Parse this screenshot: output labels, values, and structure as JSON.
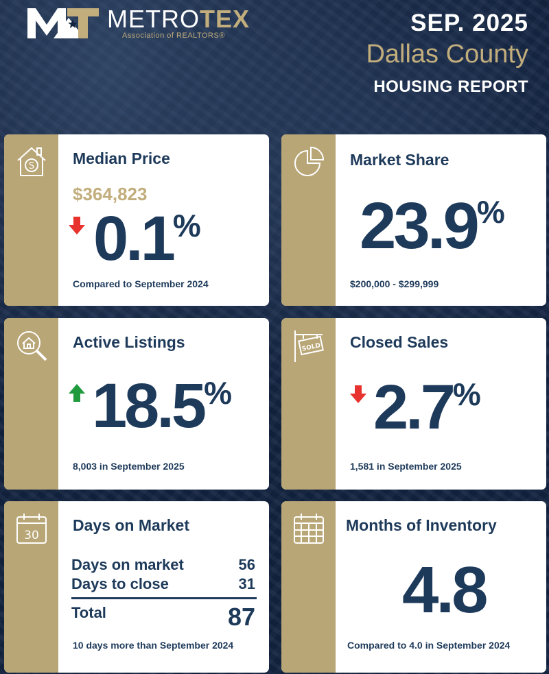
{
  "brand": {
    "name_part1": "METRO",
    "name_part2": "TEX",
    "subtitle": "Association of REALTORS®"
  },
  "header": {
    "date": "SEP. 2025",
    "county": "Dallas County",
    "report": "HOUSING REPORT"
  },
  "cards": {
    "median_price": {
      "title": "Median Price",
      "price": "$364,823",
      "change": "0.1",
      "pct_symbol": "%",
      "direction": "down",
      "footnote": "Compared to September 2024",
      "icon": "house-dollar-icon"
    },
    "market_share": {
      "title": "Market Share",
      "value": "23.9",
      "pct_symbol": "%",
      "footnote": "$200,000 - $299,999",
      "icon": "pie-chart-icon"
    },
    "active_listings": {
      "title": "Active Listings",
      "change": "18.5",
      "pct_symbol": "%",
      "direction": "up",
      "footnote": "8,003 in September 2025",
      "icon": "house-search-icon"
    },
    "closed_sales": {
      "title": "Closed Sales",
      "change": "2.7",
      "pct_symbol": "%",
      "direction": "down",
      "footnote": "1,581 in September 2025",
      "icon": "sold-sign-icon"
    },
    "days_on_market": {
      "title": "Days on Market",
      "rows": [
        {
          "label": "Days on market",
          "value": "56"
        },
        {
          "label": "Days to close",
          "value": "31"
        }
      ],
      "total_label": "Total",
      "total_value": "87",
      "footnote": "10 days more than September 2024",
      "icon": "calendar-30-icon",
      "icon_text": "30"
    },
    "months_inventory": {
      "title": "Months of Inventory",
      "value": "4.8",
      "footnote": "Compared to 4.0 in September 2024",
      "icon": "calendar-grid-icon"
    }
  },
  "colors": {
    "navy": "#1e3a5a",
    "gold": "#b9a677",
    "gold_text": "#c2ad7c",
    "down_red": "#e8322d",
    "up_green": "#1f9a3c",
    "background": "#12223f"
  }
}
